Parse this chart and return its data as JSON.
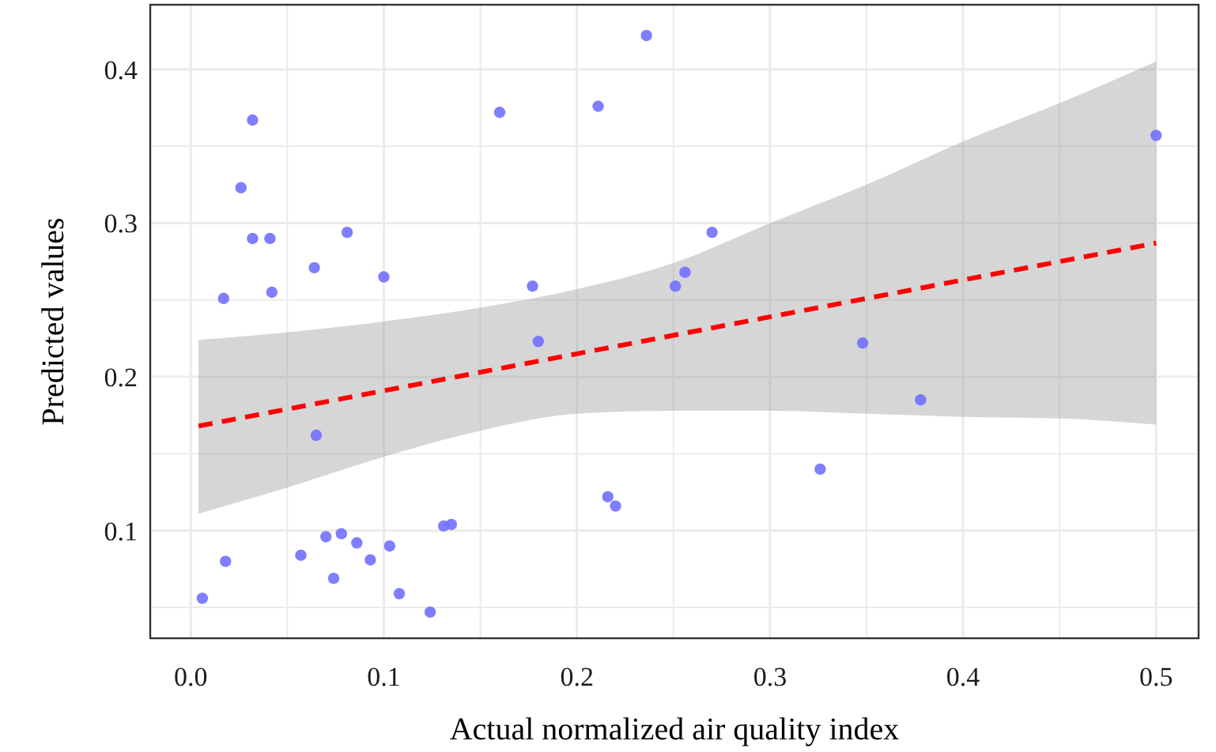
{
  "chart_data": {
    "type": "scatter",
    "xlabel": "Actual normalized air quality index",
    "ylabel": "Predicted values",
    "xlim": [
      -0.021,
      0.522
    ],
    "ylim": [
      0.03,
      0.442
    ],
    "xticks": [
      {
        "value": 0,
        "label": "0.0"
      },
      {
        "value": 0.05,
        "label": null
      },
      0.1,
      {
        "value": 0.15,
        "label": null
      },
      0.2,
      {
        "value": 0.25,
        "label": null
      },
      0.3,
      {
        "value": 0.35,
        "label": null
      },
      0.4,
      {
        "value": 0.45,
        "label": null
      },
      0.5
    ],
    "yticks": [
      {
        "value": 0.05,
        "label": null
      },
      0.1,
      {
        "value": 0.15,
        "label": null
      },
      0.2,
      {
        "value": 0.25,
        "label": null
      },
      0.3,
      {
        "value": 0.35,
        "label": null
      },
      0.4
    ],
    "grid": true,
    "series": [
      {
        "color": "#7070ff",
        "marker": "circle",
        "x": [
          0.032,
          0.026,
          0.032,
          0.041,
          0.017,
          0.042,
          0.064,
          0.081,
          0.1,
          0.16,
          0.211,
          0.236,
          0.177,
          0.18,
          0.065,
          0.216,
          0.22,
          0.131,
          0.135,
          0.07,
          0.078,
          0.086,
          0.103,
          0.093,
          0.057,
          0.018,
          0.074,
          0.108,
          0.124,
          0.006,
          0.251,
          0.256,
          0.27,
          0.348,
          0.378,
          0.326,
          0.5
        ],
        "values": [
          0.367,
          0.323,
          0.29,
          0.29,
          0.251,
          0.255,
          0.271,
          0.294,
          0.265,
          0.372,
          0.376,
          0.422,
          0.259,
          0.223,
          0.162,
          0.122,
          0.116,
          0.103,
          0.104,
          0.096,
          0.098,
          0.092,
          0.09,
          0.081,
          0.084,
          0.08,
          0.069,
          0.059,
          0.047,
          0.056,
          0.259,
          0.268,
          0.294,
          0.222,
          0.185,
          0.14,
          0.357
        ]
      },
      {
        "type": "line",
        "color": "#ff0000",
        "line_style": "dashed",
        "x": [
          0.004,
          0.05,
          0.1,
          0.15,
          0.2,
          0.25,
          0.3,
          0.35,
          0.4,
          0.45,
          0.5
        ],
        "values": [
          0.168,
          0.179,
          0.191,
          0.203,
          0.215,
          0.227,
          0.239,
          0.251,
          0.263,
          0.275,
          0.287
        ],
        "lower": [
          0.111,
          0.128,
          0.148,
          0.165,
          0.176,
          0.178,
          0.178,
          0.176,
          0.174,
          0.173,
          0.169
        ],
        "upper": [
          0.224,
          0.229,
          0.236,
          0.245,
          0.257,
          0.274,
          0.3,
          0.325,
          0.353,
          0.378,
          0.405
        ]
      }
    ]
  }
}
